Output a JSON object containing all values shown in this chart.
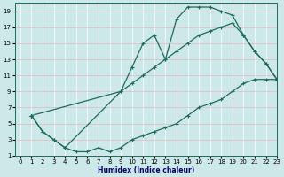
{
  "xlabel": "Humidex (Indice chaleur)",
  "ylabel": "",
  "xlim": [
    -0.5,
    23
  ],
  "ylim": [
    1,
    20
  ],
  "xticks": [
    0,
    1,
    2,
    3,
    4,
    5,
    6,
    7,
    8,
    9,
    10,
    11,
    12,
    13,
    14,
    15,
    16,
    17,
    18,
    19,
    20,
    21,
    22,
    23
  ],
  "yticks": [
    1,
    3,
    5,
    7,
    9,
    11,
    13,
    15,
    17,
    19
  ],
  "bg_color": "#cde8e8",
  "grid_color": "#e8b8b8",
  "line_color": "#1e6b5a",
  "curve_upper_x": [
    1,
    2,
    3,
    4,
    9,
    10,
    11,
    12,
    13,
    14,
    15,
    16,
    17,
    18,
    19,
    20,
    21,
    22,
    23
  ],
  "curve_upper_y": [
    6,
    4,
    3,
    2,
    9,
    12,
    15,
    16,
    13,
    18,
    19.5,
    19.5,
    19.5,
    19,
    18.5,
    16,
    14,
    12.5,
    10.5
  ],
  "curve_lower_x": [
    1,
    2,
    3,
    4,
    5,
    6,
    7,
    8,
    9,
    10,
    11,
    12,
    13,
    14,
    15,
    16,
    17,
    18,
    19,
    20,
    21,
    22,
    23
  ],
  "curve_lower_y": [
    6,
    4,
    3,
    2,
    1.5,
    1.5,
    2,
    1.5,
    2,
    3,
    3.5,
    4,
    4.5,
    5,
    6,
    7,
    7.5,
    8,
    9,
    10,
    10.5,
    10.5,
    10.5
  ],
  "curve_mid_x": [
    1,
    9,
    10,
    11,
    12,
    13,
    14,
    15,
    16,
    17,
    18,
    19,
    20,
    21,
    22,
    23
  ],
  "curve_mid_y": [
    6,
    9,
    10,
    11,
    12,
    13,
    14,
    15,
    16,
    16.5,
    17,
    17.5,
    16,
    14,
    12.5,
    10.5
  ]
}
